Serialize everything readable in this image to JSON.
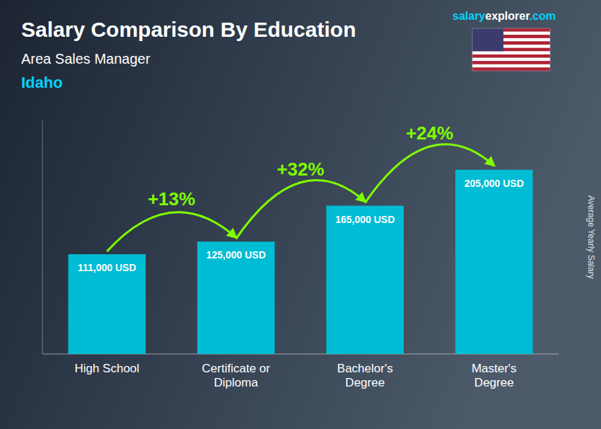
{
  "chart_data": {
    "type": "bar",
    "title": "Salary Comparison By Education",
    "subtitle": "Area Sales Manager",
    "note": "Idaho",
    "source": [
      "salary",
      "explorer",
      ".com"
    ],
    "ylabel": "Average Yearly Salary",
    "categories": [
      "High School",
      "Certificate or\nDiploma",
      "Bachelor's\nDegree",
      "Master's\nDegree"
    ],
    "values": [
      111000,
      125000,
      165000,
      205000
    ],
    "value_labels": [
      "111,000 USD",
      "125,000 USD",
      "165,000 USD",
      "205,000 USD"
    ],
    "annotations": [
      "+13%",
      "+32%",
      "+24%"
    ],
    "color": "#00bcd4",
    "ylim": [
      0,
      260000
    ],
    "data_labels": true,
    "tick_labels": "x",
    "grid": false
  }
}
